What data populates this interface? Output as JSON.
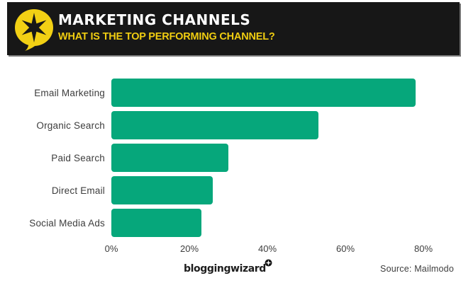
{
  "header": {
    "title": "MARKETING CHANNELS",
    "subtitle": "WHAT IS THE TOP PERFORMING CHANNEL?"
  },
  "chart_data": {
    "type": "bar",
    "orientation": "horizontal",
    "title": "MARKETING CHANNELS",
    "subtitle": "WHAT IS THE TOP PERFORMING CHANNEL?",
    "categories": [
      "Email Marketing",
      "Organic Search",
      "Paid Search",
      "Direct Email",
      "Social Media Ads"
    ],
    "values": [
      78,
      53,
      30,
      26,
      23
    ],
    "unit": "%",
    "xlim": [
      0,
      80
    ],
    "x_ticks": [
      "0%",
      "20%",
      "40%",
      "60%",
      "80%"
    ],
    "grid": false,
    "legend": false,
    "bar_color": "#06a77b"
  },
  "colors": {
    "header_background": "#171717",
    "accent_yellow": "#f2d014",
    "bar_green": "#06a77b",
    "text_dark": "#3d3d3d"
  },
  "footer": {
    "brand": "bloggingwizard",
    "source": "Source: Mailmodo"
  }
}
